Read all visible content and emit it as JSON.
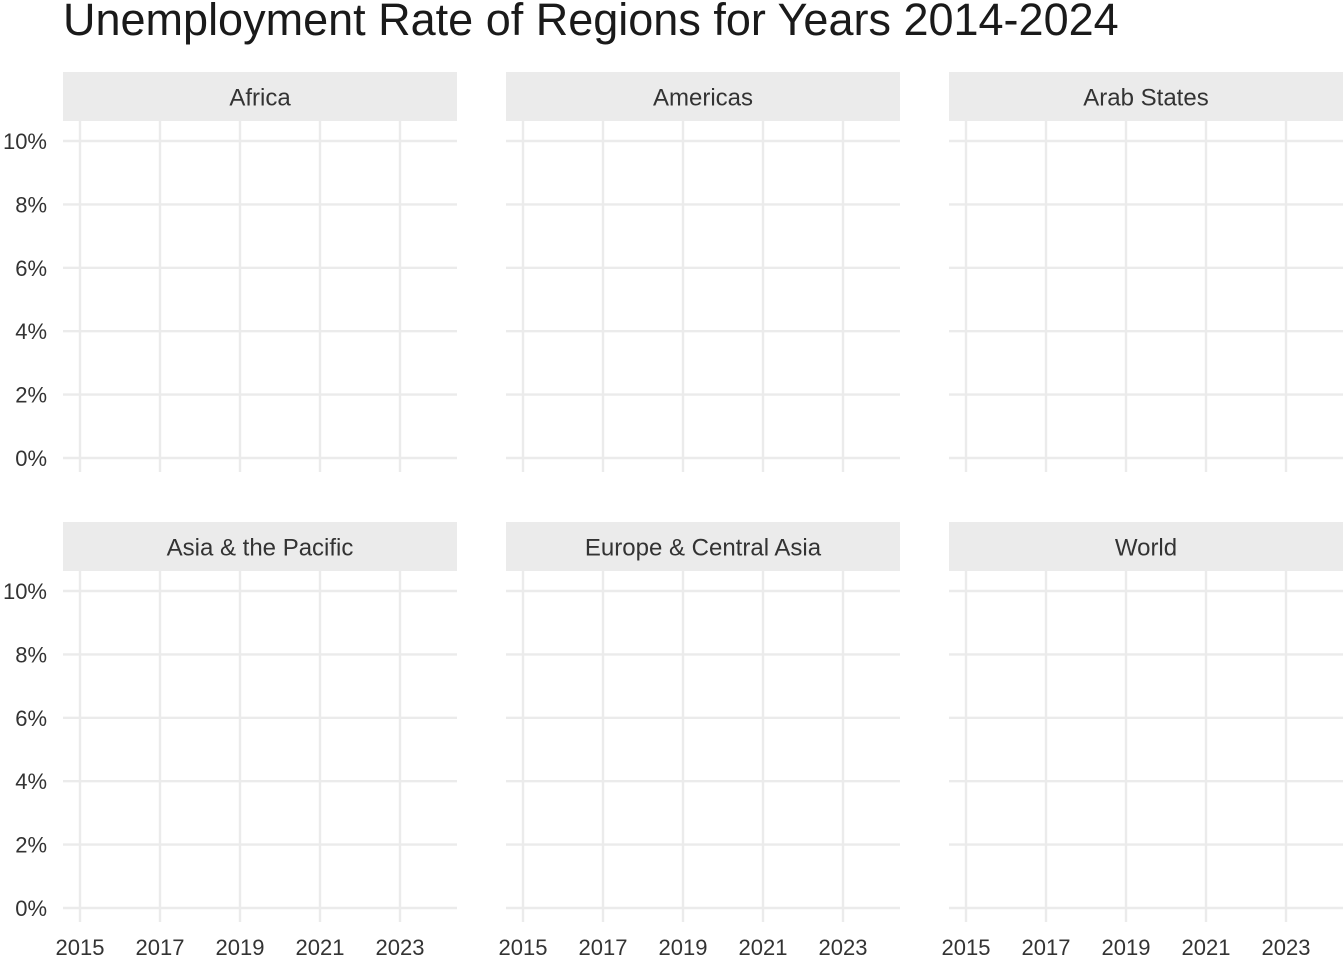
{
  "chart_data": {
    "type": "line",
    "title": "Unemployment Rate of Regions for Years 2014-2024",
    "xlabel": "",
    "ylabel": "",
    "xlim": [
      2014.25,
      2024.25
    ],
    "ylim": [
      0,
      10
    ],
    "x_ticks": [
      2015,
      2017,
      2019,
      2021,
      2023
    ],
    "y_ticks": [
      0,
      2,
      4,
      6,
      8,
      10
    ],
    "y_tick_labels": [
      "0%",
      "2%",
      "4%",
      "6%",
      "8%",
      "10%"
    ],
    "grid": true,
    "facets": [
      "Africa",
      "Americas",
      "Arab States",
      "Asia & the Pacific",
      "Europe & Central Asia",
      "World"
    ],
    "series": []
  },
  "colors": {
    "panel_strip": "#ebebeb",
    "gridline": "#ebebeb",
    "tick_label": "#333333",
    "title": "#1a1a1a"
  }
}
